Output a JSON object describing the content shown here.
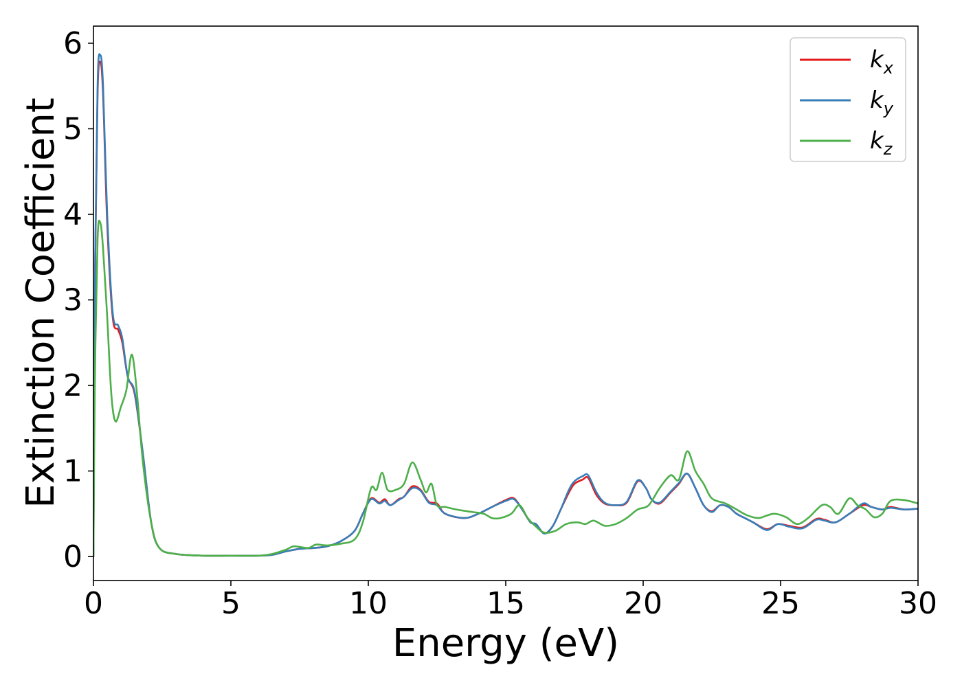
{
  "chart_data": {
    "type": "line",
    "title": "",
    "xlabel": "Energy (eV)",
    "ylabel": "Extinction Coefficient",
    "xlim": [
      0,
      30
    ],
    "ylim": [
      -0.28,
      6.2
    ],
    "xticks": [
      0,
      5,
      10,
      15,
      20,
      25,
      30
    ],
    "yticks": [
      0,
      1,
      2,
      3,
      4,
      5,
      6
    ],
    "grid": false,
    "legend": "top-right",
    "series": [
      {
        "name": "k",
        "sub": "x",
        "color": "#e41a1c",
        "points": [
          [
            0,
            0
          ],
          [
            0.05,
            3.0
          ],
          [
            0.15,
            5.4
          ],
          [
            0.25,
            5.78
          ],
          [
            0.35,
            5.4
          ],
          [
            0.5,
            3.9
          ],
          [
            0.7,
            2.8
          ],
          [
            0.9,
            2.65
          ],
          [
            1.05,
            2.5
          ],
          [
            1.25,
            2.1
          ],
          [
            1.5,
            1.9
          ],
          [
            1.8,
            1.2
          ],
          [
            2.1,
            0.4
          ],
          [
            2.4,
            0.1
          ],
          [
            3,
            0.03
          ],
          [
            4,
            0.01
          ],
          [
            5,
            0.01
          ],
          [
            6,
            0.01
          ],
          [
            6.5,
            0.02
          ],
          [
            7,
            0.06
          ],
          [
            7.5,
            0.09
          ],
          [
            8,
            0.1
          ],
          [
            8.5,
            0.12
          ],
          [
            9,
            0.18
          ],
          [
            9.5,
            0.3
          ],
          [
            9.8,
            0.5
          ],
          [
            10.1,
            0.68
          ],
          [
            10.4,
            0.63
          ],
          [
            10.6,
            0.67
          ],
          [
            10.8,
            0.6
          ],
          [
            11.1,
            0.67
          ],
          [
            11.3,
            0.7
          ],
          [
            11.6,
            0.82
          ],
          [
            11.9,
            0.78
          ],
          [
            12.2,
            0.64
          ],
          [
            12.5,
            0.62
          ],
          [
            12.8,
            0.5
          ],
          [
            13.5,
            0.45
          ],
          [
            14,
            0.5
          ],
          [
            14.5,
            0.58
          ],
          [
            15,
            0.66
          ],
          [
            15.3,
            0.68
          ],
          [
            15.6,
            0.55
          ],
          [
            15.9,
            0.4
          ],
          [
            16.1,
            0.38
          ],
          [
            16.4,
            0.27
          ],
          [
            16.7,
            0.35
          ],
          [
            17,
            0.55
          ],
          [
            17.3,
            0.75
          ],
          [
            17.5,
            0.85
          ],
          [
            17.8,
            0.9
          ],
          [
            18,
            0.92
          ],
          [
            18.3,
            0.72
          ],
          [
            18.6,
            0.62
          ],
          [
            19,
            0.6
          ],
          [
            19.4,
            0.63
          ],
          [
            19.8,
            0.88
          ],
          [
            20.1,
            0.8
          ],
          [
            20.3,
            0.67
          ],
          [
            20.6,
            0.62
          ],
          [
            21,
            0.75
          ],
          [
            21.3,
            0.85
          ],
          [
            21.6,
            0.97
          ],
          [
            21.9,
            0.8
          ],
          [
            22.2,
            0.6
          ],
          [
            22.5,
            0.53
          ],
          [
            22.8,
            0.6
          ],
          [
            23.1,
            0.58
          ],
          [
            23.4,
            0.5
          ],
          [
            23.7,
            0.45
          ],
          [
            24,
            0.4
          ],
          [
            24.5,
            0.32
          ],
          [
            24.9,
            0.38
          ],
          [
            25.3,
            0.36
          ],
          [
            25.8,
            0.34
          ],
          [
            26.3,
            0.44
          ],
          [
            26.6,
            0.43
          ],
          [
            27,
            0.4
          ],
          [
            27.5,
            0.5
          ],
          [
            28,
            0.6
          ],
          [
            28.3,
            0.58
          ],
          [
            28.7,
            0.55
          ],
          [
            29,
            0.58
          ],
          [
            29.5,
            0.55
          ],
          [
            30,
            0.56
          ]
        ]
      },
      {
        "name": "k",
        "sub": "y",
        "color": "#377eb8",
        "points": [
          [
            0,
            0
          ],
          [
            0.05,
            3.0
          ],
          [
            0.15,
            5.5
          ],
          [
            0.25,
            5.86
          ],
          [
            0.35,
            5.5
          ],
          [
            0.5,
            4.0
          ],
          [
            0.7,
            2.85
          ],
          [
            0.9,
            2.7
          ],
          [
            1.05,
            2.55
          ],
          [
            1.25,
            2.1
          ],
          [
            1.5,
            1.92
          ],
          [
            1.8,
            1.2
          ],
          [
            2.1,
            0.4
          ],
          [
            2.4,
            0.1
          ],
          [
            3,
            0.03
          ],
          [
            4,
            0.01
          ],
          [
            5,
            0.01
          ],
          [
            6,
            0.01
          ],
          [
            6.5,
            0.02
          ],
          [
            7,
            0.06
          ],
          [
            7.5,
            0.09
          ],
          [
            8,
            0.1
          ],
          [
            8.5,
            0.12
          ],
          [
            9,
            0.18
          ],
          [
            9.5,
            0.3
          ],
          [
            9.8,
            0.5
          ],
          [
            10.1,
            0.67
          ],
          [
            10.4,
            0.62
          ],
          [
            10.6,
            0.65
          ],
          [
            10.8,
            0.6
          ],
          [
            11.1,
            0.66
          ],
          [
            11.3,
            0.7
          ],
          [
            11.6,
            0.8
          ],
          [
            11.9,
            0.77
          ],
          [
            12.2,
            0.63
          ],
          [
            12.5,
            0.6
          ],
          [
            12.8,
            0.5
          ],
          [
            13.5,
            0.45
          ],
          [
            14,
            0.5
          ],
          [
            14.5,
            0.58
          ],
          [
            15,
            0.65
          ],
          [
            15.3,
            0.67
          ],
          [
            15.6,
            0.55
          ],
          [
            15.9,
            0.4
          ],
          [
            16.1,
            0.38
          ],
          [
            16.4,
            0.27
          ],
          [
            16.7,
            0.35
          ],
          [
            17,
            0.55
          ],
          [
            17.3,
            0.78
          ],
          [
            17.5,
            0.88
          ],
          [
            17.8,
            0.94
          ],
          [
            18,
            0.95
          ],
          [
            18.3,
            0.75
          ],
          [
            18.6,
            0.63
          ],
          [
            19,
            0.6
          ],
          [
            19.4,
            0.64
          ],
          [
            19.8,
            0.89
          ],
          [
            20.1,
            0.8
          ],
          [
            20.3,
            0.67
          ],
          [
            20.6,
            0.63
          ],
          [
            21,
            0.76
          ],
          [
            21.3,
            0.86
          ],
          [
            21.6,
            0.97
          ],
          [
            21.9,
            0.8
          ],
          [
            22.2,
            0.6
          ],
          [
            22.5,
            0.52
          ],
          [
            22.8,
            0.6
          ],
          [
            23.1,
            0.58
          ],
          [
            23.4,
            0.5
          ],
          [
            23.7,
            0.45
          ],
          [
            24,
            0.4
          ],
          [
            24.5,
            0.31
          ],
          [
            24.9,
            0.38
          ],
          [
            25.3,
            0.35
          ],
          [
            25.8,
            0.33
          ],
          [
            26.3,
            0.43
          ],
          [
            26.6,
            0.42
          ],
          [
            27,
            0.4
          ],
          [
            27.5,
            0.5
          ],
          [
            28,
            0.62
          ],
          [
            28.3,
            0.58
          ],
          [
            28.7,
            0.55
          ],
          [
            29,
            0.57
          ],
          [
            29.5,
            0.55
          ],
          [
            30,
            0.56
          ]
        ]
      },
      {
        "name": "k",
        "sub": "z",
        "color": "#4daf4a",
        "points": [
          [
            0,
            0
          ],
          [
            0.05,
            2.0
          ],
          [
            0.15,
            3.7
          ],
          [
            0.25,
            3.9
          ],
          [
            0.35,
            3.6
          ],
          [
            0.5,
            2.8
          ],
          [
            0.65,
            1.9
          ],
          [
            0.8,
            1.58
          ],
          [
            1.0,
            1.75
          ],
          [
            1.2,
            1.95
          ],
          [
            1.35,
            2.32
          ],
          [
            1.45,
            2.3
          ],
          [
            1.6,
            1.85
          ],
          [
            1.8,
            1.1
          ],
          [
            2.1,
            0.4
          ],
          [
            2.4,
            0.1
          ],
          [
            3,
            0.03
          ],
          [
            4,
            0.01
          ],
          [
            5,
            0.01
          ],
          [
            6,
            0.01
          ],
          [
            6.5,
            0.03
          ],
          [
            7,
            0.08
          ],
          [
            7.3,
            0.12
          ],
          [
            7.8,
            0.1
          ],
          [
            8.1,
            0.14
          ],
          [
            8.5,
            0.13
          ],
          [
            9,
            0.15
          ],
          [
            9.5,
            0.2
          ],
          [
            9.8,
            0.4
          ],
          [
            10.1,
            0.8
          ],
          [
            10.3,
            0.78
          ],
          [
            10.5,
            0.98
          ],
          [
            10.7,
            0.78
          ],
          [
            11,
            0.78
          ],
          [
            11.3,
            0.85
          ],
          [
            11.6,
            1.1
          ],
          [
            11.9,
            0.9
          ],
          [
            12.1,
            0.75
          ],
          [
            12.3,
            0.85
          ],
          [
            12.5,
            0.6
          ],
          [
            12.8,
            0.58
          ],
          [
            13.2,
            0.55
          ],
          [
            13.8,
            0.52
          ],
          [
            14.2,
            0.5
          ],
          [
            14.5,
            0.45
          ],
          [
            14.8,
            0.45
          ],
          [
            15.2,
            0.5
          ],
          [
            15.5,
            0.6
          ],
          [
            15.8,
            0.45
          ],
          [
            16.1,
            0.35
          ],
          [
            16.4,
            0.28
          ],
          [
            16.8,
            0.3
          ],
          [
            17.2,
            0.38
          ],
          [
            17.6,
            0.4
          ],
          [
            17.9,
            0.38
          ],
          [
            18.2,
            0.42
          ],
          [
            18.6,
            0.36
          ],
          [
            19,
            0.38
          ],
          [
            19.4,
            0.45
          ],
          [
            19.8,
            0.55
          ],
          [
            20.2,
            0.6
          ],
          [
            20.6,
            0.8
          ],
          [
            21,
            0.95
          ],
          [
            21.3,
            0.9
          ],
          [
            21.6,
            1.23
          ],
          [
            21.9,
            1.0
          ],
          [
            22.2,
            0.85
          ],
          [
            22.5,
            0.68
          ],
          [
            23,
            0.62
          ],
          [
            23.4,
            0.55
          ],
          [
            23.8,
            0.48
          ],
          [
            24.2,
            0.45
          ],
          [
            24.5,
            0.48
          ],
          [
            24.8,
            0.5
          ],
          [
            25.2,
            0.46
          ],
          [
            25.6,
            0.38
          ],
          [
            26,
            0.45
          ],
          [
            26.5,
            0.6
          ],
          [
            26.8,
            0.58
          ],
          [
            27.1,
            0.5
          ],
          [
            27.5,
            0.68
          ],
          [
            27.8,
            0.6
          ],
          [
            28.1,
            0.55
          ],
          [
            28.4,
            0.46
          ],
          [
            28.7,
            0.5
          ],
          [
            29,
            0.65
          ],
          [
            29.5,
            0.66
          ],
          [
            30,
            0.62
          ]
        ]
      }
    ]
  }
}
